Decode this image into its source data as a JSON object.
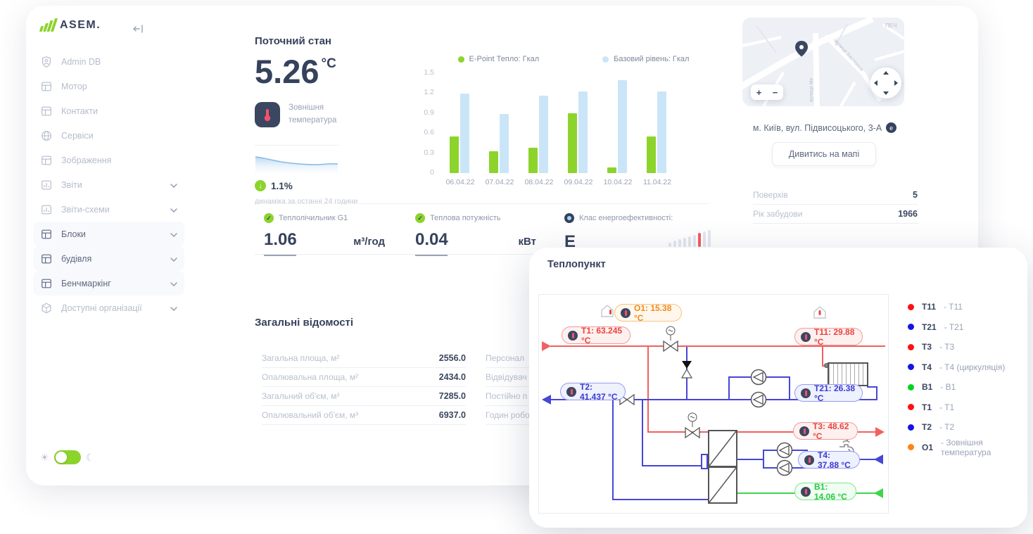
{
  "sidebar": {
    "logo": "ASEM.",
    "items": [
      {
        "label": "Admin DB",
        "icon": "badge",
        "chevron": false,
        "active": false
      },
      {
        "label": "Мотор",
        "icon": "table",
        "chevron": false,
        "active": false
      },
      {
        "label": "Контакти",
        "icon": "table",
        "chevron": false,
        "active": false
      },
      {
        "label": "Сервіси",
        "icon": "globe",
        "chevron": false,
        "active": false
      },
      {
        "label": "Зображення",
        "icon": "table",
        "chevron": false,
        "active": false
      },
      {
        "label": "Звіти",
        "icon": "chart",
        "chevron": true,
        "active": false
      },
      {
        "label": "Звіти-схеми",
        "icon": "chart",
        "chevron": true,
        "active": false
      },
      {
        "label": "Блоки",
        "icon": "table",
        "chevron": true,
        "active": true
      },
      {
        "label": "будівля",
        "icon": "table",
        "chevron": true,
        "active": true
      },
      {
        "label": "Бенчмаркінг",
        "icon": "table",
        "chevron": true,
        "active": true
      },
      {
        "label": "Доступні організації",
        "icon": "cube",
        "chevron": true,
        "active": false
      }
    ]
  },
  "current_state": {
    "title": "Поточний стан",
    "temperature_value": "5.26",
    "temperature_unit": "°C",
    "sensor_label_line1": "Зовнішня",
    "sensor_label_line2": "температура",
    "trend_value": "1.1%",
    "trend_caption": "динаміка за останні 24 години"
  },
  "chart_data": {
    "type": "bar",
    "categories": [
      "06.04.22",
      "07.04.22",
      "08.04.22",
      "09.04.22",
      "10.04.22",
      "11.04.22"
    ],
    "series": [
      {
        "name": "E-Point Тепло: Гкал",
        "color": "#8CD42C",
        "values": [
          0.55,
          0.33,
          0.38,
          0.9,
          0.08,
          0.55
        ]
      },
      {
        "name": "Базовий рівень: Гкал",
        "color": "#CBE5F8",
        "values": [
          1.19,
          0.89,
          1.16,
          1.23,
          1.39,
          1.23
        ]
      }
    ],
    "title": "",
    "xlabel": "",
    "ylabel": "",
    "ylim": [
      0,
      1.5
    ],
    "yticks": [
      0,
      0.3,
      0.6,
      0.9,
      1.2,
      1.5
    ],
    "grid": false,
    "legend_position": "top"
  },
  "metrics": {
    "items": [
      {
        "label": "Теплолічильник G1",
        "value": "1.06",
        "unit": "м³/год",
        "icon": "check",
        "underline": true
      },
      {
        "label": "Теплова потужність",
        "value": "0.04",
        "unit": "кВт",
        "icon": "check",
        "underline": true
      },
      {
        "label": "Клас енергоефективності:",
        "value": "E",
        "unit": "",
        "icon": "info",
        "gauge": {
          "bars": 9,
          "highlight_index": 6,
          "highlight_color": "#f25c5c",
          "bar_color": "#e4e7f0"
        }
      }
    ]
  },
  "general_info": {
    "title": "Загальні відомості",
    "left_rows": [
      {
        "label": "Загальна площа, м²",
        "value": "2556.0"
      },
      {
        "label": "Опалювальна площа, м²",
        "value": "2434.0"
      },
      {
        "label": "Загальний об'єм, м³",
        "value": "7285.0"
      },
      {
        "label": "Опалювальний об'єм, м³",
        "value": "6937.0"
      }
    ],
    "right_rows": [
      {
        "label": "Персонал"
      },
      {
        "label": "Відвідувач"
      },
      {
        "label": "Постійно п"
      },
      {
        "label": "Годин робо"
      }
    ]
  },
  "location": {
    "address": "м. Київ, вул. Підвисоцького, 3-А",
    "badge": "e",
    "map_button": "Дивитись на мапі",
    "details": [
      {
        "label": "Поверхів",
        "value": "5"
      },
      {
        "label": "Рік забудови",
        "value": "1966"
      }
    ],
    "map": {
      "zoom_in": "+",
      "zoom_out": "−",
      "labels": [
        "ПЕЧ",
        "вулиця Бастіонна",
        "вулиця Ми"
      ]
    }
  },
  "heat_station": {
    "title": "Теплопункт",
    "sensors": {
      "o1": "O1: 15.38 °C",
      "t1": "T1: 63.245 °C",
      "t11": "T11: 29.88 °C",
      "t2": "T2: 41.437 °C",
      "t21": "T21: 26.38 °C",
      "t3": "T3: 48.62 °C",
      "t4": "T4: 37.88 °C",
      "b1": "B1: 14.06 °C"
    },
    "legend": [
      {
        "code": "T11",
        "desc": "T11",
        "color": "#ff1010"
      },
      {
        "code": "T21",
        "desc": "T21",
        "color": "#1414e8"
      },
      {
        "code": "T3",
        "desc": "T3",
        "color": "#ff1010"
      },
      {
        "code": "T4",
        "desc": "T4 (циркуляція)",
        "color": "#1414e8"
      },
      {
        "code": "B1",
        "desc": "B1",
        "color": "#00d41c"
      },
      {
        "code": "T1",
        "desc": "T1",
        "color": "#ff1010"
      },
      {
        "code": "T2",
        "desc": "T2",
        "color": "#1414e8"
      },
      {
        "code": "O1",
        "desc": "Зовнішня температура",
        "color": "#ff8414"
      }
    ]
  }
}
